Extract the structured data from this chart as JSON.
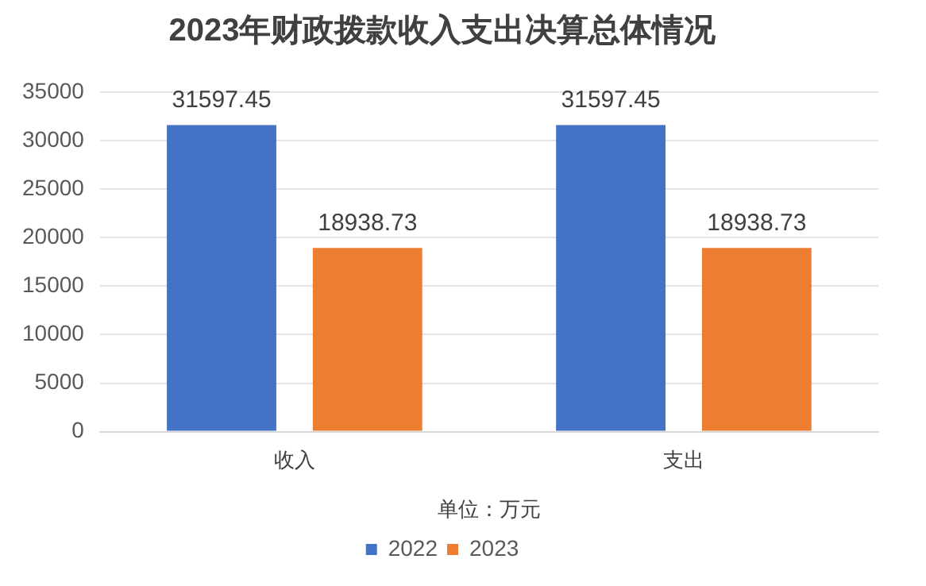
{
  "chart_data": {
    "type": "bar",
    "title": "2023年财政拨款收入支出决算总体情况",
    "xlabel": "单位：万元",
    "categories": [
      "收入",
      "支出"
    ],
    "series": [
      {
        "name": "2022",
        "color": "#4472c4",
        "values": [
          31597.45,
          31597.45
        ]
      },
      {
        "name": "2023",
        "color": "#ed7d31",
        "values": [
          18938.73,
          18938.73
        ]
      }
    ],
    "ylim": [
      0,
      35000
    ],
    "yticks": [
      0,
      5000,
      10000,
      15000,
      20000,
      25000,
      30000,
      35000
    ],
    "grid": "y",
    "legend": "bottom",
    "data_labels": true
  }
}
